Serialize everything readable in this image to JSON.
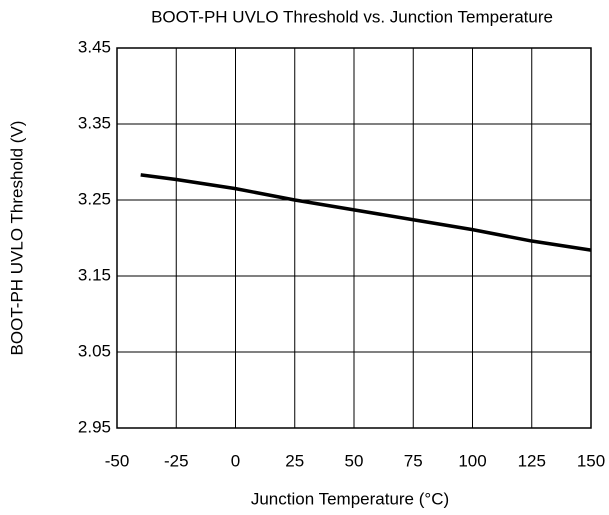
{
  "chart_data": {
    "type": "line",
    "title": "BOOT-PH UVLO Threshold vs. Junction Temperature",
    "x_label": "Junction Temperature (°C)",
    "y_label": "BOOT-PH UVLO Threshold (V)",
    "x": [
      -40,
      -25,
      0,
      25,
      50,
      75,
      100,
      125,
      150
    ],
    "series": [
      {
        "color": "#000000",
        "values": [
          3.283,
          3.277,
          3.265,
          3.25,
          3.237,
          3.224,
          3.211,
          3.196,
          3.184
        ]
      }
    ],
    "xlim": [
      -50,
      150
    ],
    "xticks": [
      -50,
      -25,
      0,
      25,
      50,
      75,
      100,
      125,
      150
    ],
    "ylim": [
      2.95,
      3.45
    ],
    "yticks": [
      2.95,
      3.05,
      3.15,
      3.25,
      3.35,
      3.45
    ],
    "grid": true
  }
}
